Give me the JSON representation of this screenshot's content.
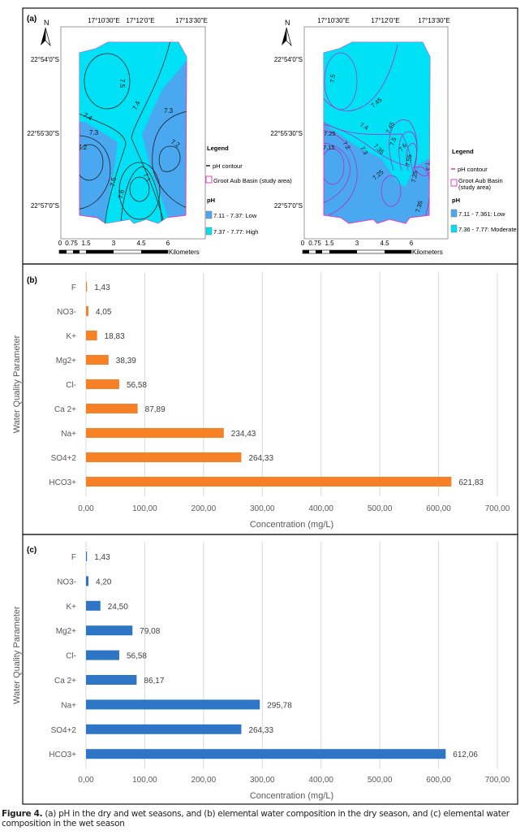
{
  "panel_a": {
    "label": "(a)",
    "maps": [
      {
        "north": "N",
        "lon_ticks": [
          "17°10'30\"E",
          "17°12'0\"E",
          "17°13'30\"E"
        ],
        "lat_ticks": [
          "22°54'0\"S",
          "22°55'30\"S",
          "22°57'0\"S"
        ],
        "contour_labels": [
          "7.5",
          "7.4",
          "7.4",
          "7.3",
          "7.3",
          "7.2",
          "7.2",
          "7.5",
          "7.6",
          "7.1"
        ],
        "legend_title": "Legend",
        "legend_contour": "pH contour",
        "legend_basin": "Groot Aub Basin (study area)",
        "legend_ph": "pH",
        "classes": [
          {
            "label": "7.11 - 7.37: Low",
            "color": "#4aa8f0"
          },
          {
            "label": "7.37 - 7.77: High",
            "color": "#00e1f5"
          }
        ],
        "contour_color": "#222222",
        "scale_ticks": [
          "0",
          "0.75",
          "1.5",
          "3",
          "4.5",
          "6"
        ],
        "scale_unit": "Kilometers"
      },
      {
        "north": "N",
        "lon_ticks": [
          "17°10'30\"E",
          "17°12'0\"E",
          "17°13'30\"E"
        ],
        "lat_ticks": [
          "22°54'0\"S",
          "22°55'30\"S",
          "22°57'0\"S"
        ],
        "contour_labels": [
          "7.5",
          "7.45",
          "7.4",
          "7.45",
          "7.25",
          "7.15",
          "7.2",
          "7.3",
          "7.35",
          "7.5",
          "7.6",
          "7.55",
          "7.25",
          "7.25",
          "7.3",
          "7.35"
        ],
        "legend_title": "Legend",
        "legend_contour": "pH contour",
        "legend_basin": "Groot Aub Basin (study area)",
        "legend_ph": "pH",
        "classes": [
          {
            "label": "7.11 - 7.361: Low",
            "color": "#4aa8f0"
          },
          {
            "label": "7.36 - 7.77: Moderate",
            "color": "#00e1f5"
          }
        ],
        "contour_color": "#c020c0",
        "scale_ticks": [
          "0",
          "0.75",
          "1.5",
          "3",
          "4.5",
          "6"
        ],
        "scale_unit": "Kilometers"
      }
    ]
  },
  "chart_data": [
    {
      "panel": "(b)",
      "type": "bar",
      "orientation": "horizontal",
      "categories": [
        "F",
        "NO3-",
        "K+",
        "Mg2+",
        "Cl-",
        "Ca 2+",
        "Na+",
        "SO4+2",
        "HCO3+"
      ],
      "values": [
        1.43,
        4.05,
        18.83,
        38.39,
        56.58,
        87.89,
        234.43,
        264.33,
        621.83
      ],
      "data_labels": [
        "1,43",
        "4,05",
        "18,83",
        "38,39",
        "56,58",
        "87,89",
        "234,43",
        "264,33",
        "621,83"
      ],
      "xlabel": "Concentration (mg/L)",
      "ylabel": "Water Quality Parameter",
      "xlim": [
        0,
        700
      ],
      "xticks": [
        "0,00",
        "100,00",
        "200,00",
        "300,00",
        "400,00",
        "500,00",
        "600,00",
        "700,00"
      ],
      "grid": "vertical",
      "color": "#f58025"
    },
    {
      "panel": "(c)",
      "type": "bar",
      "orientation": "horizontal",
      "categories": [
        "F",
        "NO3-",
        "K+",
        "Mg2+",
        "Cl-",
        "Ca 2+",
        "Na+",
        "SO4+2",
        "HCO3+"
      ],
      "values": [
        1.43,
        4.2,
        24.5,
        79.08,
        56.58,
        86.17,
        295.78,
        264.33,
        612.06
      ],
      "data_labels": [
        "1,43",
        "4,20",
        "24,50",
        "79,08",
        "56,58",
        "86,17",
        "295,78",
        "264,33",
        "612,06"
      ],
      "xlabel": "Concentration (mg/L)",
      "ylabel": "Water Quality Parameter",
      "xlim": [
        0,
        700
      ],
      "xticks": [
        "0,00",
        "100,00",
        "200,00",
        "300,00",
        "400,00",
        "500,00",
        "600,00",
        "700,00"
      ],
      "grid": "vertical",
      "color": "#2e75c6"
    }
  ],
  "caption": {
    "label": "Figure 4.",
    "text": " (a) pH in the dry and wet seasons, and (b) elemental water composition in the dry season, and (c) elemental water composition in the wet season"
  }
}
